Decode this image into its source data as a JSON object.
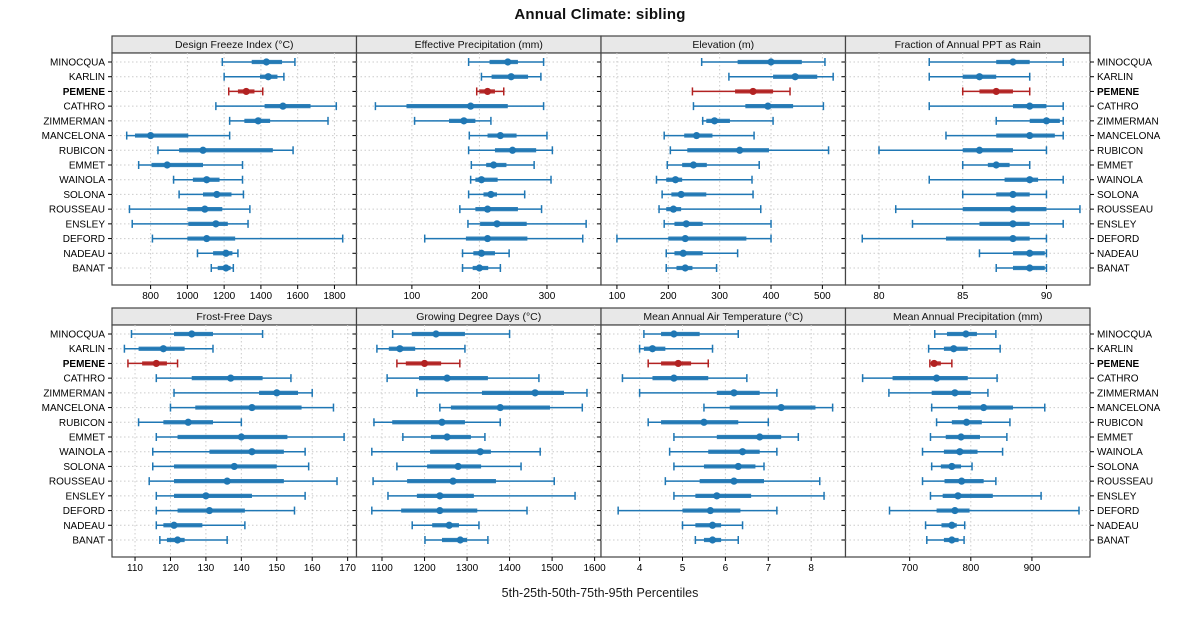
{
  "title": "Annual Climate: sibling",
  "caption": "5th-25th-50th-75th-95th Percentiles",
  "colors": {
    "series": "#1f77b4",
    "highlight": "#b22222",
    "header_bg": "#e8e8e8",
    "border": "#444444",
    "grid": "#cccccc",
    "text": "#000000"
  },
  "chart_data": {
    "type": "multi-panel-percentile-dotplot",
    "layout": {
      "rows": 2,
      "cols": 4,
      "grid": "on",
      "legend": "none"
    },
    "percentile_labels": [
      "5th",
      "25th",
      "50th",
      "75th",
      "95th"
    ],
    "categories": [
      "MINOCQUA",
      "KARLIN",
      "PEMENE",
      "CATHRO",
      "ZIMMERMAN",
      "MANCELONA",
      "RUBICON",
      "EMMET",
      "WAINOLA",
      "SOLONA",
      "ROUSSEAU",
      "ENSLEY",
      "DEFORD",
      "NADEAU",
      "BANAT"
    ],
    "highlight_category": "PEMENE",
    "panels": [
      {
        "title": "Design Freeze Index (°C)",
        "xlim": [
          590,
          1920
        ],
        "ticks": [
          800,
          1000,
          1200,
          1400,
          1600,
          1800
        ],
        "values": {
          "MINOCQUA": [
            1190,
            1350,
            1430,
            1515,
            1585
          ],
          "KARLIN": [
            1200,
            1395,
            1440,
            1490,
            1525
          ],
          "PEMENE": [
            1225,
            1275,
            1320,
            1365,
            1410
          ],
          "CATHRO": [
            1155,
            1420,
            1520,
            1670,
            1810
          ],
          "ZIMMERMAN": [
            1230,
            1310,
            1385,
            1450,
            1765
          ],
          "MANCELONA": [
            670,
            715,
            800,
            1005,
            1230
          ],
          "RUBICON": [
            840,
            955,
            1085,
            1465,
            1575
          ],
          "EMMET": [
            735,
            805,
            890,
            1085,
            1300
          ],
          "WAINOLA": [
            925,
            1030,
            1105,
            1175,
            1300
          ],
          "SOLONA": [
            955,
            1085,
            1160,
            1240,
            1305
          ],
          "ROUSSEAU": [
            685,
            1000,
            1095,
            1190,
            1340
          ],
          "ENSLEY": [
            700,
            1005,
            1155,
            1220,
            1330
          ],
          "DEFORD": [
            810,
            1000,
            1105,
            1260,
            1845
          ],
          "NADEAU": [
            1055,
            1140,
            1210,
            1245,
            1275
          ],
          "BANAT": [
            1130,
            1165,
            1210,
            1235,
            1250
          ]
        }
      },
      {
        "title": "Effective Precipitation (mm)",
        "xlim": [
          18,
          380
        ],
        "ticks": [
          100,
          200,
          300
        ],
        "values": {
          "MINOCQUA": [
            184,
            215,
            242,
            257,
            295
          ],
          "KARLIN": [
            203,
            218,
            247,
            272,
            291
          ],
          "PEMENE": [
            196,
            200,
            212,
            223,
            236
          ],
          "CATHRO": [
            46,
            92,
            187,
            242,
            295
          ],
          "ZIMMERMAN": [
            104,
            155,
            177,
            194,
            217
          ],
          "MANCELONA": [
            185,
            212,
            231,
            255,
            300
          ],
          "RUBICON": [
            184,
            223,
            249,
            284,
            308
          ],
          "EMMET": [
            188,
            210,
            221,
            240,
            281
          ],
          "WAINOLA": [
            187,
            194,
            203,
            227,
            306
          ],
          "SOLONA": [
            184,
            206,
            217,
            226,
            267
          ],
          "ROUSSEAU": [
            171,
            194,
            212,
            257,
            292
          ],
          "ENSLEY": [
            183,
            201,
            226,
            270,
            358
          ],
          "DEFORD": [
            119,
            180,
            212,
            271,
            353
          ],
          "NADEAU": [
            175,
            191,
            203,
            223,
            244
          ],
          "BANAT": [
            175,
            190,
            200,
            213,
            231
          ]
        }
      },
      {
        "title": "Elevation (m)",
        "xlim": [
          69,
          545
        ],
        "ticks": [
          100,
          200,
          300,
          400,
          500
        ],
        "values": {
          "MINOCQUA": [
            265,
            335,
            400,
            460,
            505
          ],
          "KARLIN": [
            318,
            404,
            447,
            490,
            521
          ],
          "PEMENE": [
            247,
            330,
            365,
            404,
            437
          ],
          "CATHRO": [
            249,
            350,
            394,
            443,
            502
          ],
          "ZIMMERMAN": [
            267,
            274,
            290,
            320,
            404
          ],
          "MANCELONA": [
            192,
            231,
            255,
            286,
            367
          ],
          "RUBICON": [
            204,
            237,
            339,
            396,
            512
          ],
          "EMMET": [
            198,
            227,
            249,
            275,
            377
          ],
          "WAINOLA": [
            177,
            196,
            214,
            227,
            363
          ],
          "SOLONA": [
            188,
            206,
            225,
            274,
            365
          ],
          "ROUSSEAU": [
            182,
            196,
            210,
            225,
            380
          ],
          "ENSLEY": [
            192,
            212,
            235,
            267,
            400
          ],
          "DEFORD": [
            100,
            200,
            233,
            352,
            400
          ],
          "NADEAU": [
            196,
            212,
            229,
            267,
            335
          ],
          "BANAT": [
            196,
            216,
            233,
            247,
            294
          ]
        }
      },
      {
        "title": "Fraction of Annual PPT as Rain",
        "xlim": [
          78,
          92.6
        ],
        "ticks": [
          80,
          85,
          90
        ],
        "values": {
          "MINOCQUA": [
            83,
            87,
            88,
            89,
            91
          ],
          "KARLIN": [
            83,
            85,
            86,
            87,
            89
          ],
          "PEMENE": [
            85,
            86,
            87,
            88,
            89
          ],
          "CATHRO": [
            83,
            88,
            89,
            90,
            91
          ],
          "ZIMMERMAN": [
            87,
            89,
            90,
            90.8,
            91
          ],
          "MANCELONA": [
            84,
            87,
            89,
            90.5,
            91
          ],
          "RUBICON": [
            80,
            85,
            86,
            88,
            90
          ],
          "EMMET": [
            85,
            86.5,
            87,
            87.8,
            89
          ],
          "WAINOLA": [
            83,
            87.5,
            89,
            89.5,
            91
          ],
          "SOLONA": [
            85,
            87,
            88,
            89,
            90
          ],
          "ROUSSEAU": [
            81,
            85,
            88,
            90,
            92
          ],
          "ENSLEY": [
            82,
            86,
            88,
            89,
            91
          ],
          "DEFORD": [
            79,
            84,
            88,
            89,
            90
          ],
          "NADEAU": [
            86,
            88,
            89,
            89.9,
            90
          ],
          "BANAT": [
            87,
            88,
            89,
            89.9,
            90
          ]
        }
      },
      {
        "title": "Frost-Free Days",
        "xlim": [
          103.5,
          172.5
        ],
        "ticks": [
          110,
          120,
          130,
          140,
          150,
          160,
          170
        ],
        "values": {
          "MINOCQUA": [
            109,
            121,
            126,
            132,
            146
          ],
          "KARLIN": [
            107,
            111,
            118,
            124,
            132
          ],
          "PEMENE": [
            108,
            112,
            116,
            119,
            122
          ],
          "CATHRO": [
            116,
            126,
            137,
            146,
            154
          ],
          "ZIMMERMAN": [
            121,
            145,
            150,
            156,
            160
          ],
          "MANCELONA": [
            120,
            127,
            143,
            157,
            166
          ],
          "RUBICON": [
            111,
            118,
            125,
            132,
            140
          ],
          "EMMET": [
            116,
            122,
            140,
            153,
            169
          ],
          "WAINOLA": [
            115,
            131,
            143,
            152,
            158
          ],
          "SOLONA": [
            115,
            121,
            138,
            150,
            159
          ],
          "ROUSSEAU": [
            114,
            121,
            136,
            152,
            167
          ],
          "ENSLEY": [
            116,
            121,
            130,
            143,
            158
          ],
          "DEFORD": [
            116,
            122,
            131,
            141,
            155
          ],
          "NADEAU": [
            116,
            118,
            121,
            129,
            141
          ],
          "BANAT": [
            117,
            119,
            122,
            124,
            136
          ]
        }
      },
      {
        "title": "Growing Degree Days (°C)",
        "xlim": [
          1040,
          1615
        ],
        "ticks": [
          1100,
          1200,
          1300,
          1400,
          1500,
          1600
        ],
        "values": {
          "MINOCQUA": [
            1125,
            1170,
            1227,
            1295,
            1400
          ],
          "KARLIN": [
            1088,
            1116,
            1142,
            1178,
            1295
          ],
          "PEMENE": [
            1135,
            1156,
            1200,
            1239,
            1283
          ],
          "CATHRO": [
            1112,
            1187,
            1253,
            1349,
            1469
          ],
          "ZIMMERMAN": [
            1182,
            1335,
            1460,
            1528,
            1582
          ],
          "MANCELONA": [
            1236,
            1262,
            1378,
            1495,
            1571
          ],
          "RUBICON": [
            1081,
            1124,
            1241,
            1295,
            1378
          ],
          "EMMET": [
            1149,
            1215,
            1253,
            1309,
            1342
          ],
          "WAINOLA": [
            1076,
            1213,
            1331,
            1356,
            1472
          ],
          "SOLONA": [
            1135,
            1206,
            1279,
            1333,
            1427
          ],
          "ROUSSEAU": [
            1079,
            1159,
            1267,
            1368,
            1505
          ],
          "ENSLEY": [
            1114,
            1182,
            1236,
            1316,
            1554
          ],
          "DEFORD": [
            1076,
            1145,
            1236,
            1324,
            1441
          ],
          "NADEAU": [
            1171,
            1218,
            1258,
            1281,
            1328
          ],
          "BANAT": [
            1201,
            1241,
            1284,
            1300,
            1349
          ]
        }
      },
      {
        "title": "Mean Annual Air Temperature (°C)",
        "xlim": [
          3.1,
          8.8
        ],
        "ticks": [
          4,
          5,
          6,
          7,
          8
        ],
        "values": {
          "MINOCQUA": [
            4.1,
            4.5,
            4.8,
            5.4,
            6.3
          ],
          "KARLIN": [
            4.0,
            4.1,
            4.3,
            4.6,
            5.7
          ],
          "PEMENE": [
            4.2,
            4.5,
            4.9,
            5.2,
            5.6
          ],
          "CATHRO": [
            3.6,
            4.3,
            4.8,
            5.6,
            6.5
          ],
          "ZIMMERMAN": [
            4.0,
            5.8,
            6.2,
            6.8,
            7.2
          ],
          "MANCELONA": [
            5.5,
            6.1,
            7.3,
            8.1,
            8.5
          ],
          "RUBICON": [
            4.2,
            4.5,
            5.5,
            6.3,
            7.0
          ],
          "EMMET": [
            4.8,
            5.8,
            6.8,
            7.3,
            7.7
          ],
          "WAINOLA": [
            4.7,
            5.6,
            6.4,
            6.8,
            7.2
          ],
          "SOLONA": [
            4.8,
            5.5,
            6.3,
            6.7,
            6.9
          ],
          "ROUSSEAU": [
            4.6,
            5.4,
            6.2,
            6.9,
            8.2
          ],
          "ENSLEY": [
            4.8,
            5.3,
            5.8,
            6.6,
            8.3
          ],
          "DEFORD": [
            3.5,
            5.0,
            5.65,
            6.35,
            7.2
          ],
          "NADEAU": [
            5.0,
            5.3,
            5.7,
            5.9,
            6.4
          ],
          "BANAT": [
            5.3,
            5.5,
            5.7,
            5.9,
            6.3
          ]
        }
      },
      {
        "title": "Mean Annual Precipitation (mm)",
        "xlim": [
          595,
          995
        ],
        "ticks": [
          700,
          800,
          900
        ],
        "values": {
          "MINOCQUA": [
            741,
            761,
            792,
            810,
            841
          ],
          "KARLIN": [
            731,
            756,
            772,
            795,
            848
          ],
          "PEMENE": [
            733,
            735,
            740,
            751,
            769
          ],
          "CATHRO": [
            623,
            672,
            744,
            795,
            843
          ],
          "ZIMMERMAN": [
            666,
            736,
            774,
            800,
            828
          ],
          "MANCELONA": [
            736,
            779,
            821,
            869,
            921
          ],
          "RUBICON": [
            744,
            769,
            793,
            818,
            864
          ],
          "EMMET": [
            734,
            759,
            784,
            815,
            859
          ],
          "WAINOLA": [
            721,
            756,
            782,
            811,
            852
          ],
          "SOLONA": [
            736,
            751,
            769,
            784,
            802
          ],
          "ROUSSEAU": [
            721,
            757,
            785,
            821,
            841
          ],
          "ENSLEY": [
            734,
            754,
            779,
            836,
            915
          ],
          "DEFORD": [
            667,
            744,
            774,
            798,
            977
          ],
          "NADEAU": [
            726,
            752,
            769,
            777,
            790
          ],
          "BANAT": [
            728,
            756,
            769,
            780,
            789
          ]
        }
      }
    ]
  }
}
